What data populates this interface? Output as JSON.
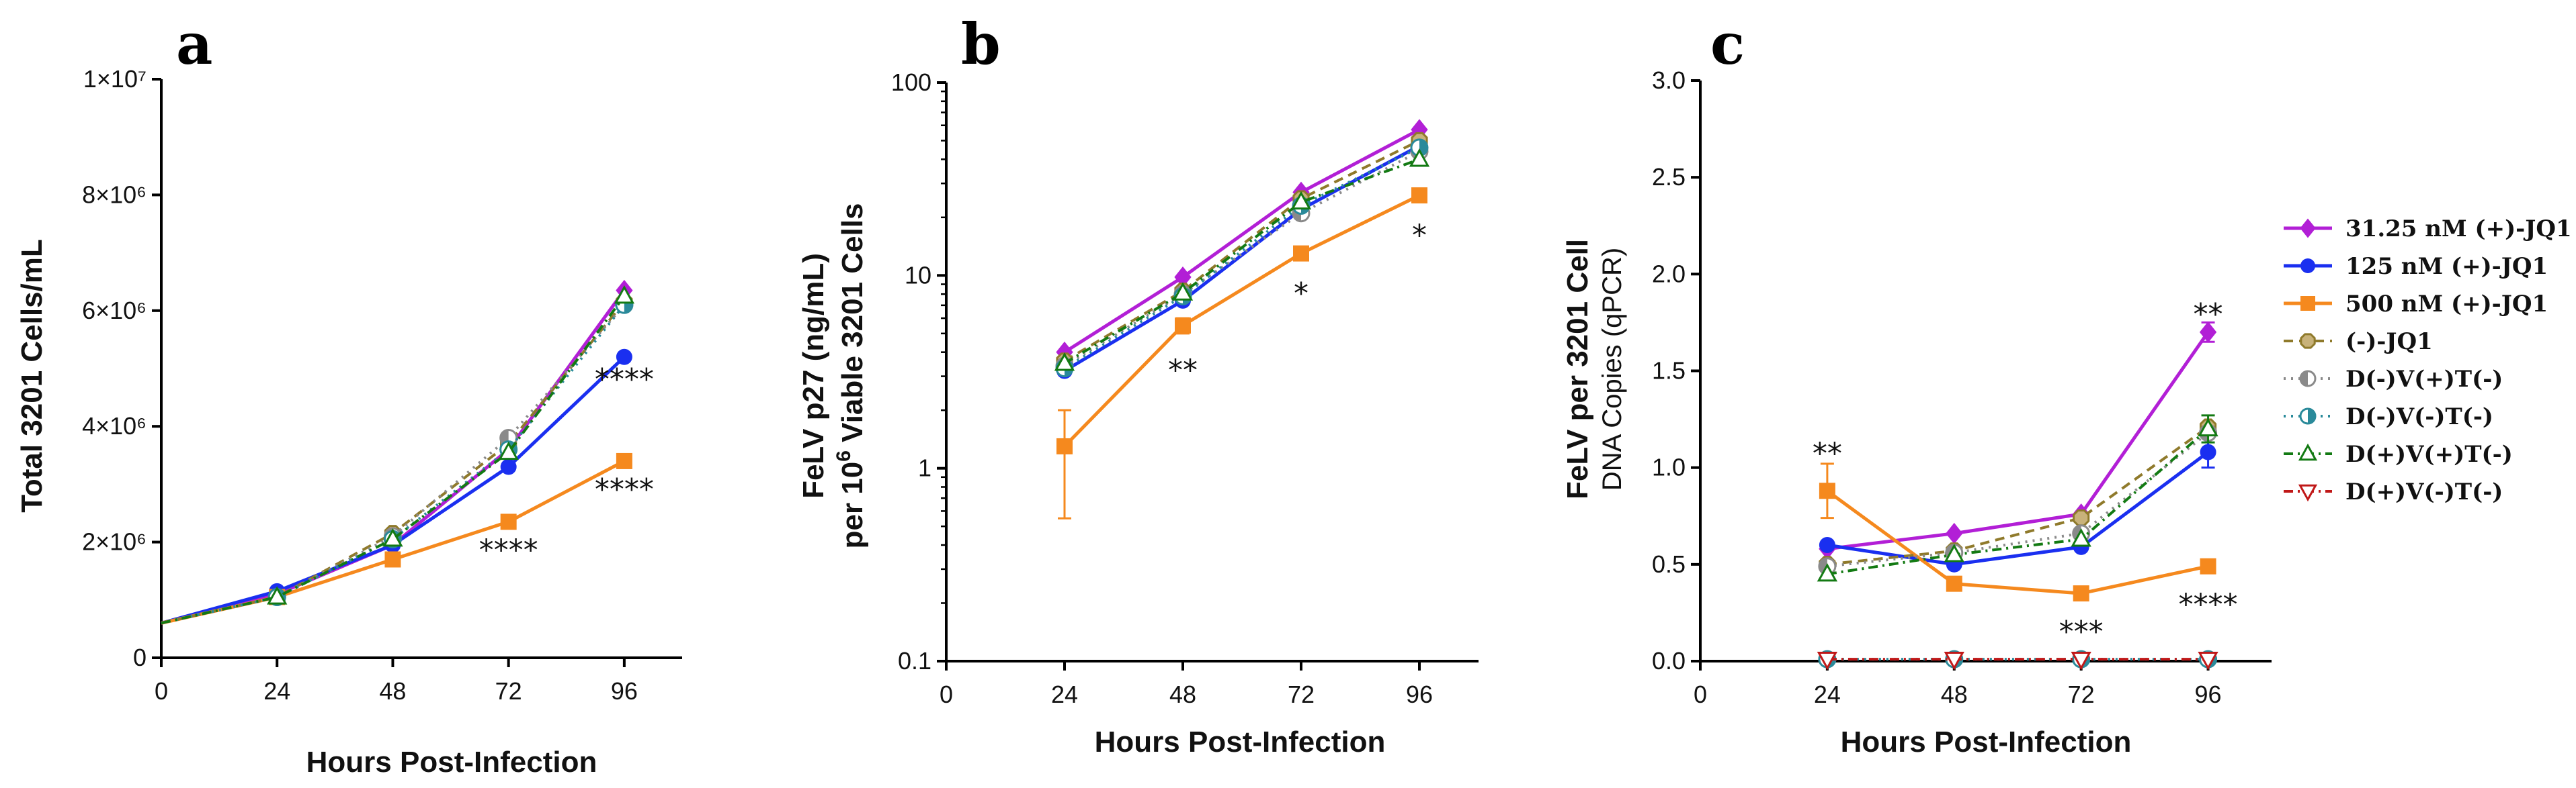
{
  "chart_data": [
    {
      "panel": "a",
      "type": "line",
      "yscale": "linear",
      "xlabel": "Hours Post-Infection",
      "ylabel": "Total 3201 Cells/mL",
      "xlim": [
        0,
        108
      ],
      "ylim": [
        0,
        10000000
      ],
      "xticks": [
        0,
        24,
        48,
        72,
        96
      ],
      "yticks": [
        {
          "v": 0,
          "label": "0"
        },
        {
          "v": 2000000,
          "label": "2×10⁶"
        },
        {
          "v": 4000000,
          "label": "4×10⁶"
        },
        {
          "v": 6000000,
          "label": "6×10⁶"
        },
        {
          "v": 8000000,
          "label": "8×10⁶"
        },
        {
          "v": 10000000,
          "label": "1×10⁷"
        }
      ],
      "x": [
        24,
        48,
        72,
        96
      ],
      "fit_start": 600000,
      "series": [
        {
          "key": "s1",
          "values": [
            1100000,
            1950000,
            3600000,
            6350000
          ]
        },
        {
          "key": "s2",
          "values": [
            1150000,
            1950000,
            3300000,
            5200000
          ]
        },
        {
          "key": "s3",
          "values": [
            1050000,
            1700000,
            2350000,
            3400000
          ]
        },
        {
          "key": "s4",
          "values": [
            1050000,
            2150000,
            3700000,
            6150000
          ]
        },
        {
          "key": "s5",
          "values": [
            1050000,
            2100000,
            3800000,
            6100000
          ]
        },
        {
          "key": "s6",
          "values": [
            1050000,
            2050000,
            3600000,
            6100000
          ]
        },
        {
          "key": "s7",
          "values": [
            1050000,
            2050000,
            3550000,
            6250000
          ]
        }
      ],
      "annotations": [
        {
          "x": 96,
          "y": 4800000,
          "text": "****"
        },
        {
          "x": 96,
          "y": 2900000,
          "text": "****"
        },
        {
          "x": 72,
          "y": 1850000,
          "text": "****"
        }
      ]
    },
    {
      "panel": "b",
      "type": "line",
      "yscale": "log",
      "xlabel": "Hours Post-Infection",
      "ylabel": "FeLV p27 (ng/mL)",
      "ylabel_line2_prefix": "per 10",
      "ylabel_line2_sup": "6",
      "ylabel_line2_suffix": " Viable 3201 Cells",
      "xlim": [
        0,
        108
      ],
      "ylim": [
        0.1,
        100
      ],
      "xticks": [
        0,
        24,
        48,
        72,
        96
      ],
      "yticks": [
        {
          "v": 0.1,
          "label": "0.1"
        },
        {
          "v": 1,
          "label": "1"
        },
        {
          "v": 10,
          "label": "10"
        },
        {
          "v": 100,
          "label": "100"
        }
      ],
      "x": [
        24,
        48,
        72,
        96
      ],
      "series": [
        {
          "key": "s1",
          "values": [
            4.0,
            9.8,
            27,
            57
          ]
        },
        {
          "key": "s2",
          "values": [
            3.2,
            7.4,
            22,
            47
          ]
        },
        {
          "key": "s3",
          "values": [
            1.3,
            5.5,
            13,
            26
          ],
          "errors": [
            [
              0.55,
              2.0
            ],
            [
              5.0,
              6.0
            ],
            [
              12,
              14
            ],
            [
              24,
              28
            ]
          ]
        },
        {
          "key": "s4",
          "values": [
            3.6,
            8.3,
            25,
            50
          ]
        },
        {
          "key": "s5",
          "values": [
            3.4,
            8.0,
            21,
            44
          ]
        },
        {
          "key": "s6",
          "values": [
            3.3,
            7.8,
            23,
            46
          ]
        },
        {
          "key": "s7",
          "values": [
            3.5,
            8.1,
            24,
            40
          ]
        }
      ],
      "annotations": [
        {
          "x": 48,
          "y": 3.2,
          "text": "**"
        },
        {
          "x": 72,
          "y": 8.0,
          "text": "*"
        },
        {
          "x": 96,
          "y": 16,
          "text": "*"
        }
      ]
    },
    {
      "panel": "c",
      "type": "line",
      "yscale": "linear",
      "xlabel": "Hours Post-Infection",
      "ylabel": "FeLV per 3201 Cell",
      "ylabel_line2": "DNA Copies (qPCR)",
      "xlim": [
        0,
        108
      ],
      "ylim": [
        0,
        3.0
      ],
      "xticks": [
        0,
        24,
        48,
        72,
        96
      ],
      "yticks": [
        {
          "v": 0,
          "label": "0.0"
        },
        {
          "v": 0.5,
          "label": "0.5"
        },
        {
          "v": 1.0,
          "label": "1.0"
        },
        {
          "v": 1.5,
          "label": "1.5"
        },
        {
          "v": 2.0,
          "label": "2.0"
        },
        {
          "v": 2.5,
          "label": "2.5"
        },
        {
          "v": 3.0,
          "label": "3.0"
        }
      ],
      "x": [
        24,
        48,
        72,
        96
      ],
      "series": [
        {
          "key": "s1",
          "values": [
            0.58,
            0.66,
            0.76,
            1.7
          ],
          "errors": [
            null,
            null,
            null,
            [
              1.65,
              1.75
            ]
          ]
        },
        {
          "key": "s2",
          "values": [
            0.6,
            0.5,
            0.59,
            1.08
          ],
          "errors": [
            null,
            null,
            null,
            [
              1.0,
              1.16
            ]
          ]
        },
        {
          "key": "s3",
          "values": [
            0.88,
            0.4,
            0.35,
            0.49
          ],
          "errors": [
            [
              0.74,
              1.02
            ],
            null,
            null,
            null
          ]
        },
        {
          "key": "s4",
          "values": [
            0.5,
            0.57,
            0.74,
            1.21
          ]
        },
        {
          "key": "s5",
          "values": [
            0.49,
            0.56,
            0.66,
            1.18
          ]
        },
        {
          "key": "s6",
          "values": [
            0.01,
            0.01,
            0.01,
            0.01
          ]
        },
        {
          "key": "s7",
          "values": [
            0.45,
            0.55,
            0.63,
            1.2
          ],
          "errors": [
            null,
            null,
            null,
            [
              1.13,
              1.27
            ]
          ]
        },
        {
          "key": "s8",
          "values": [
            0.01,
            0.01,
            0.01,
            0.01
          ]
        }
      ],
      "annotations": [
        {
          "x": 24,
          "y": 1.07,
          "text": "**"
        },
        {
          "x": 72,
          "y": 0.15,
          "text": "***"
        },
        {
          "x": 96,
          "y": 1.79,
          "text": "**"
        },
        {
          "x": 96,
          "y": 0.29,
          "text": "****"
        }
      ]
    }
  ],
  "legend": [
    {
      "key": "s1",
      "label": "31.25 nM (+)-JQ1",
      "color": "#b21fd6",
      "marker": "diamond",
      "dash": "solid"
    },
    {
      "key": "s2",
      "label": "125 nM (+)-JQ1",
      "color": "#1a2ff0",
      "marker": "circle",
      "dash": "solid"
    },
    {
      "key": "s3",
      "label": "500 nM (+)-JQ1",
      "color": "#f5891e",
      "marker": "square",
      "dash": "solid"
    },
    {
      "key": "s4",
      "label": "(-)-JQ1",
      "color": "#8f7a2b",
      "marker": "hexagon",
      "dash": "dashed"
    },
    {
      "key": "s5",
      "label": "D(-)V(+)T(-)",
      "color": "#8a8a8a",
      "marker": "halfcircle",
      "dash": "dotted"
    },
    {
      "key": "s6",
      "label": "D(-)V(-)T(-)",
      "color": "#2a8a9a",
      "marker": "halfcircle2",
      "dash": "dotted"
    },
    {
      "key": "s7",
      "label": "D(+)V(+)T(-)",
      "color": "#137a13",
      "marker": "triangle",
      "dash": "dashdot"
    },
    {
      "key": "s8",
      "label": "D(+)V(-)T(-)",
      "color": "#c01818",
      "marker": "invtriangle",
      "dash": "dashdot"
    }
  ]
}
